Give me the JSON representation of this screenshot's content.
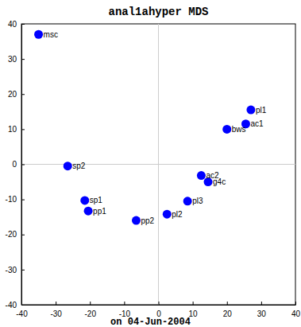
{
  "chart_data": {
    "type": "scatter",
    "title": "anal1ahyper MDS",
    "subtitle": "on 04-Jun-2004",
    "point_labels": [
      "msc",
      "sp2",
      "sp1",
      "pp1",
      "pp2",
      "pl2",
      "pl3",
      "ac2",
      "g4c",
      "bws",
      "ac1",
      "pl1"
    ],
    "x": [
      -35,
      -26.5,
      -21.5,
      -20.5,
      -6.5,
      2.5,
      8.5,
      12.5,
      14.5,
      20,
      25.5,
      27
    ],
    "values": [
      37,
      -0.5,
      -10.3,
      -13.3,
      -16,
      -14.2,
      -10.5,
      -3.2,
      -5,
      10,
      11.5,
      15.5
    ],
    "color": "#0000ff",
    "marker": "circle",
    "xlim": [
      -40,
      40
    ],
    "xticks": [
      -40,
      -30,
      -20,
      -10,
      0,
      10,
      20,
      30,
      40
    ],
    "ylim": [
      -40,
      40
    ],
    "yticks": [
      -40,
      -30,
      -20,
      -10,
      0,
      10,
      20,
      30,
      40
    ],
    "grid": false
  }
}
